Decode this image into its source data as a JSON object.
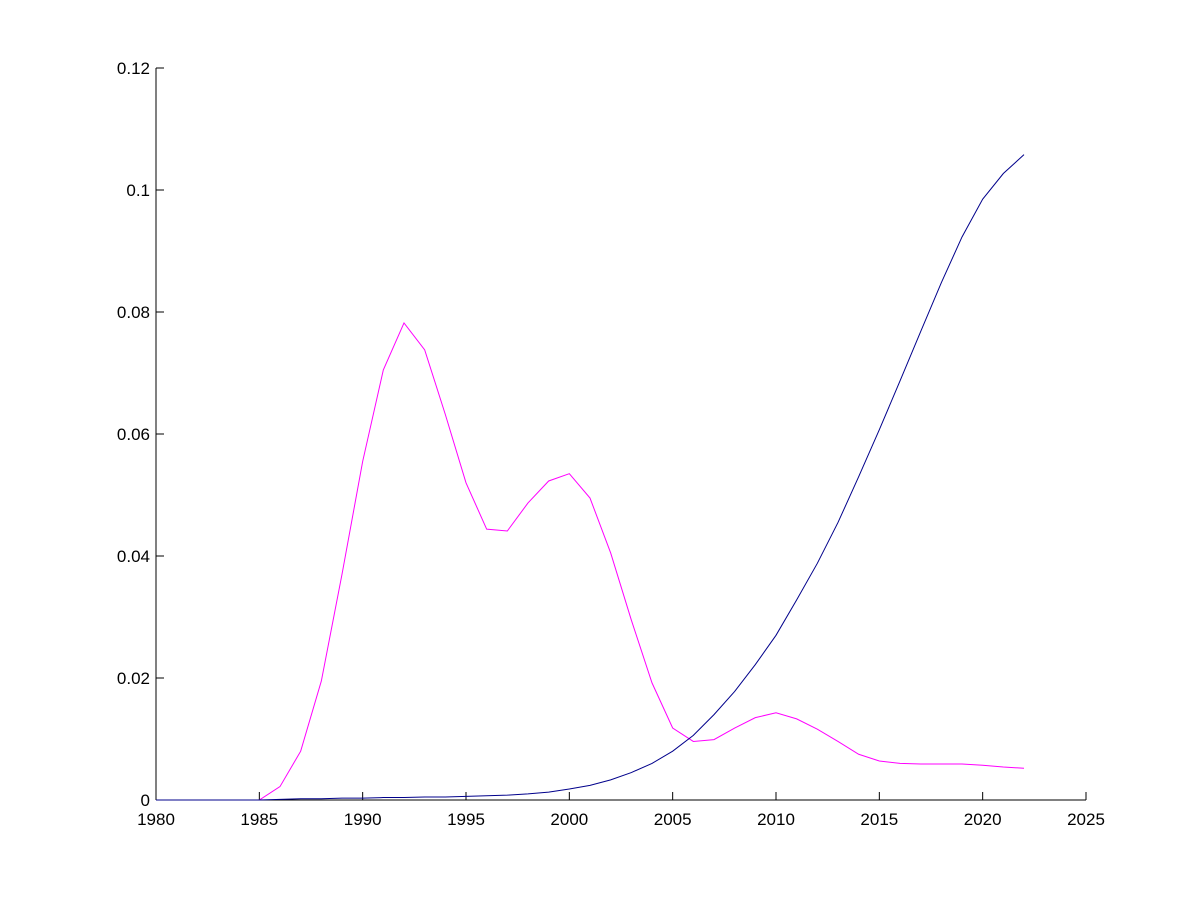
{
  "chart_data": {
    "type": "line",
    "title": "",
    "xlabel": "",
    "ylabel": "",
    "xlim": [
      1980,
      2025
    ],
    "ylim": [
      0,
      0.12
    ],
    "xticks": [
      1980,
      1985,
      1990,
      1995,
      2000,
      2005,
      2010,
      2015,
      2020,
      2025
    ],
    "xtick_labels": [
      "1980",
      "1985",
      "1990",
      "1995",
      "2000",
      "2005",
      "2010",
      "2015",
      "2020",
      "2025"
    ],
    "yticks": [
      0,
      0.02,
      0.04,
      0.06,
      0.08,
      0.1,
      0.12
    ],
    "ytick_labels": [
      "0",
      "0.02",
      "0.04",
      "0.06",
      "0.08",
      "0.1",
      "0.12"
    ],
    "grid": false,
    "legend": "none",
    "series": [
      {
        "color": "#ff00ff",
        "x": [
          1980,
          1981,
          1982,
          1983,
          1984,
          1985,
          1986,
          1987,
          1988,
          1989,
          1990,
          1991,
          1992,
          1993,
          1994,
          1995,
          1996,
          1997,
          1998,
          1999,
          2000,
          2001,
          2002,
          2003,
          2004,
          2005,
          2006,
          2007,
          2008,
          2009,
          2010,
          2011,
          2012,
          2013,
          2014,
          2015,
          2016,
          2017,
          2018,
          2019,
          2020,
          2021,
          2022
        ],
        "y": [
          0,
          0,
          0,
          0,
          0,
          0,
          0.0022,
          0.008,
          0.0195,
          0.037,
          0.0555,
          0.0705,
          0.0782,
          0.0738,
          0.0632,
          0.052,
          0.0444,
          0.0441,
          0.0487,
          0.0523,
          0.0535,
          0.0495,
          0.0405,
          0.0295,
          0.0192,
          0.0118,
          0.0096,
          0.0099,
          0.0118,
          0.0135,
          0.0143,
          0.0133,
          0.0116,
          0.0096,
          0.0075,
          0.0064,
          0.006,
          0.0059,
          0.0059,
          0.0059,
          0.0057,
          0.0054,
          0.0052
        ]
      },
      {
        "color": "#00008b",
        "x": [
          1980,
          1981,
          1982,
          1983,
          1984,
          1985,
          1986,
          1987,
          1988,
          1989,
          1990,
          1991,
          1992,
          1993,
          1994,
          1995,
          1996,
          1997,
          1998,
          1999,
          2000,
          2001,
          2002,
          2003,
          2004,
          2005,
          2006,
          2007,
          2008,
          2009,
          2010,
          2011,
          2012,
          2013,
          2014,
          2015,
          2016,
          2017,
          2018,
          2019,
          2020,
          2021,
          2022
        ],
        "y": [
          0,
          0,
          0,
          0,
          0,
          0,
          0.0001,
          0.0002,
          0.0002,
          0.0003,
          0.0003,
          0.0004,
          0.0004,
          0.0005,
          0.0005,
          0.0006,
          0.0007,
          0.0008,
          0.001,
          0.0013,
          0.0018,
          0.0024,
          0.0033,
          0.0045,
          0.006,
          0.008,
          0.0106,
          0.014,
          0.0178,
          0.0222,
          0.027,
          0.0328,
          0.0388,
          0.0455,
          0.053,
          0.0607,
          0.0687,
          0.0768,
          0.0848,
          0.0923,
          0.0985,
          0.1027,
          0.1058
        ]
      }
    ]
  }
}
